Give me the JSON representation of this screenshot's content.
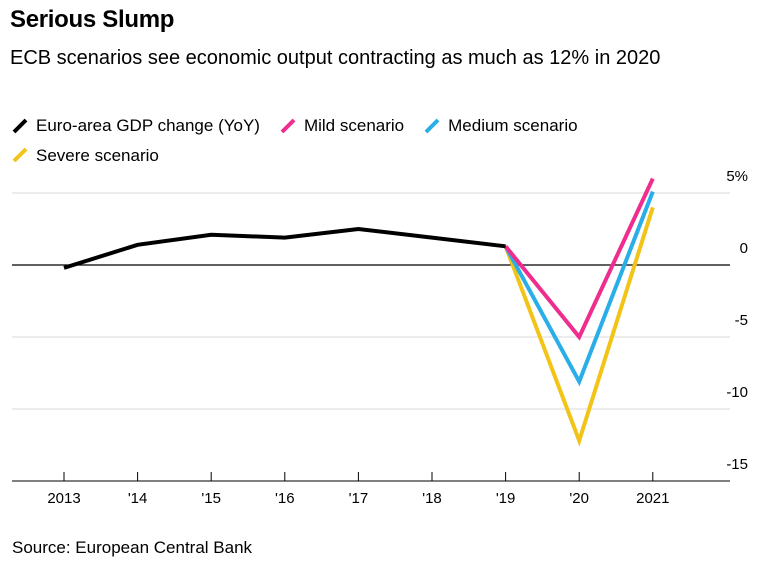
{
  "header": {
    "title": "Serious Slump",
    "subtitle": "ECB scenarios see economic output contracting as much as 12% in 2020"
  },
  "footer": {
    "source": "Source: European Central Bank"
  },
  "chart_data": {
    "type": "line",
    "title": "Serious Slump",
    "subtitle": "ECB scenarios see economic output contracting as much as 12% in 2020",
    "xlabel": "",
    "ylabel": "",
    "x_tick_labels": [
      "2013",
      "'14",
      "'15",
      "'16",
      "'17",
      "'18",
      "'19",
      "'20",
      "2021"
    ],
    "y_ticks": [
      5,
      0,
      -5,
      -10,
      -15
    ],
    "y_tick_labels": [
      "5%",
      "0",
      "-5",
      "-10",
      "-15"
    ],
    "ylim": [
      -15,
      5
    ],
    "grid": true,
    "legend_position": "top-left",
    "series": [
      {
        "name": "Euro-area GDP change (YoY)",
        "color": "#000000",
        "x": [
          2013,
          2014,
          2015,
          2016,
          2017,
          2018,
          2019
        ],
        "values": [
          -0.2,
          1.4,
          2.1,
          1.9,
          2.5,
          1.9,
          1.3
        ]
      },
      {
        "name": "Mild scenario",
        "color": "#ee2d8e",
        "x": [
          2019,
          2020,
          2021
        ],
        "values": [
          1.3,
          -5.0,
          6.0
        ]
      },
      {
        "name": "Medium scenario",
        "color": "#29aee8",
        "x": [
          2019,
          2020,
          2021
        ],
        "values": [
          1.3,
          -8.1,
          5.1
        ]
      },
      {
        "name": "Severe scenario",
        "color": "#f2c417",
        "x": [
          2019,
          2020,
          2021
        ],
        "values": [
          1.3,
          -12.2,
          4.0
        ]
      }
    ]
  }
}
